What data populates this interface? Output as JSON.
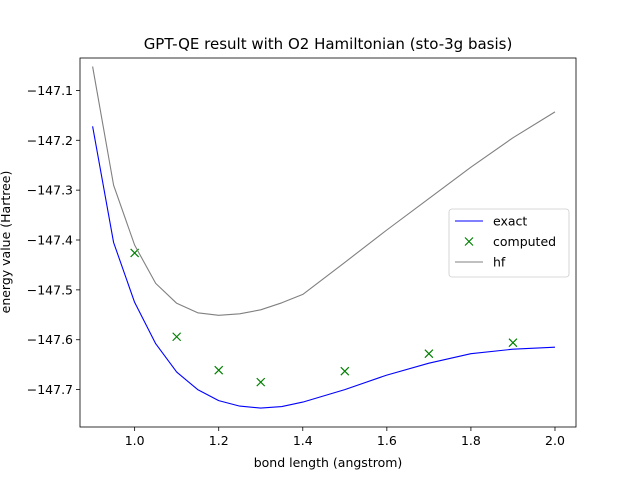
{
  "chart_data": {
    "type": "line",
    "title": "GPT-QE result with O2 Hamiltonian (sto-3g basis)",
    "xlabel": "bond length (angstrom)",
    "ylabel": "energy value (Hartree)",
    "xlim": [
      0.87,
      2.05
    ],
    "ylim": [
      -147.775,
      -147.035
    ],
    "xticks": [
      1.0,
      1.2,
      1.4,
      1.6,
      1.8,
      2.0
    ],
    "xtick_labels": [
      "1.0",
      "1.2",
      "1.4",
      "1.6",
      "1.8",
      "2.0"
    ],
    "yticks": [
      -147.7,
      -147.6,
      -147.5,
      -147.4,
      -147.3,
      -147.2,
      -147.1
    ],
    "ytick_labels": [
      "−147.7",
      "−147.6",
      "−147.5",
      "−147.4",
      "−147.3",
      "−147.2",
      "−147.1"
    ],
    "grid": false,
    "legend_position": "right",
    "series": [
      {
        "name": "exact",
        "kind": "line",
        "color": "#0000ff",
        "x": [
          0.9,
          0.95,
          1.0,
          1.05,
          1.1,
          1.15,
          1.2,
          1.25,
          1.3,
          1.35,
          1.4,
          1.5,
          1.6,
          1.7,
          1.8,
          1.9,
          2.0
        ],
        "y": [
          -147.172,
          -147.405,
          -147.525,
          -147.608,
          -147.665,
          -147.7,
          -147.722,
          -147.733,
          -147.737,
          -147.734,
          -147.725,
          -147.7,
          -147.671,
          -147.647,
          -147.628,
          -147.619,
          -147.615
        ]
      },
      {
        "name": "computed",
        "kind": "scatter",
        "marker": "x",
        "color": "#008000",
        "x": [
          1.0,
          1.1,
          1.2,
          1.3,
          1.5,
          1.7,
          1.9
        ],
        "y": [
          -147.426,
          -147.594,
          -147.661,
          -147.685,
          -147.663,
          -147.628,
          -147.606
        ]
      },
      {
        "name": "hf",
        "kind": "line",
        "color": "#808080",
        "x": [
          0.9,
          0.95,
          1.0,
          1.05,
          1.1,
          1.15,
          1.2,
          1.25,
          1.3,
          1.35,
          1.4,
          1.5,
          1.6,
          1.7,
          1.8,
          1.9,
          2.0
        ],
        "y": [
          -147.052,
          -147.29,
          -147.41,
          -147.487,
          -147.527,
          -147.546,
          -147.551,
          -147.548,
          -147.54,
          -147.526,
          -147.509,
          -147.445,
          -147.38,
          -147.317,
          -147.254,
          -147.195,
          -147.143
        ]
      }
    ]
  }
}
